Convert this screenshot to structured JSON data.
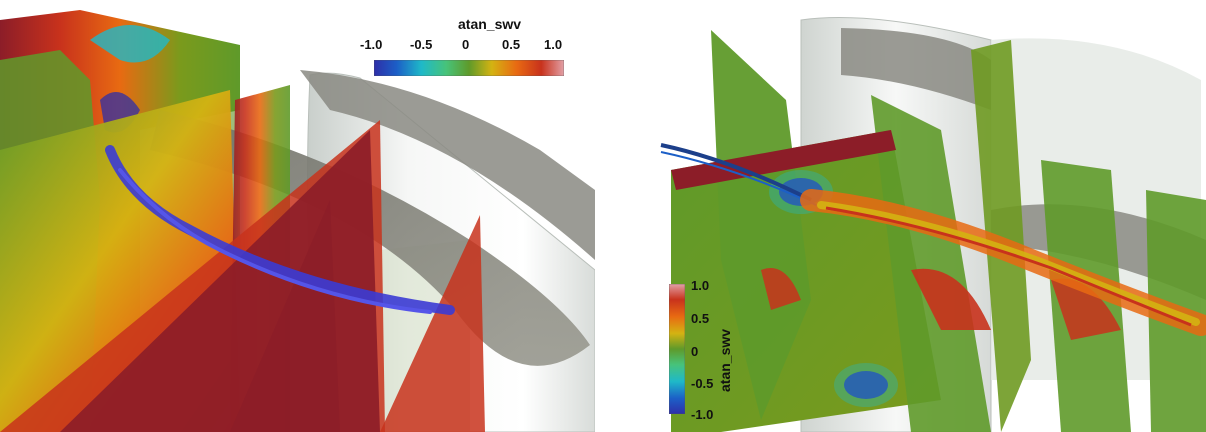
{
  "left_panel": {
    "colorbar": {
      "title": "atan_swv",
      "ticks": [
        "-1.0",
        "-0.5",
        "0",
        "0.5",
        "1.0"
      ],
      "orientation": "horizontal",
      "placement": "top-right"
    }
  },
  "right_panel": {
    "colorbar": {
      "title": "atan_swv",
      "ticks": [
        "1.0",
        "0.5",
        "0",
        "-0.5",
        "-1.0"
      ],
      "orientation": "vertical",
      "placement": "bottom-left"
    }
  },
  "colormap": {
    "stops": [
      "#2e2fa8",
      "#1c5fc7",
      "#1fb9c8",
      "#47c37a",
      "#5f9a2a",
      "#7a9a1c",
      "#d4b312",
      "#e86a12",
      "#c8321c",
      "#8c1d28",
      "#e2a0a6"
    ]
  }
}
